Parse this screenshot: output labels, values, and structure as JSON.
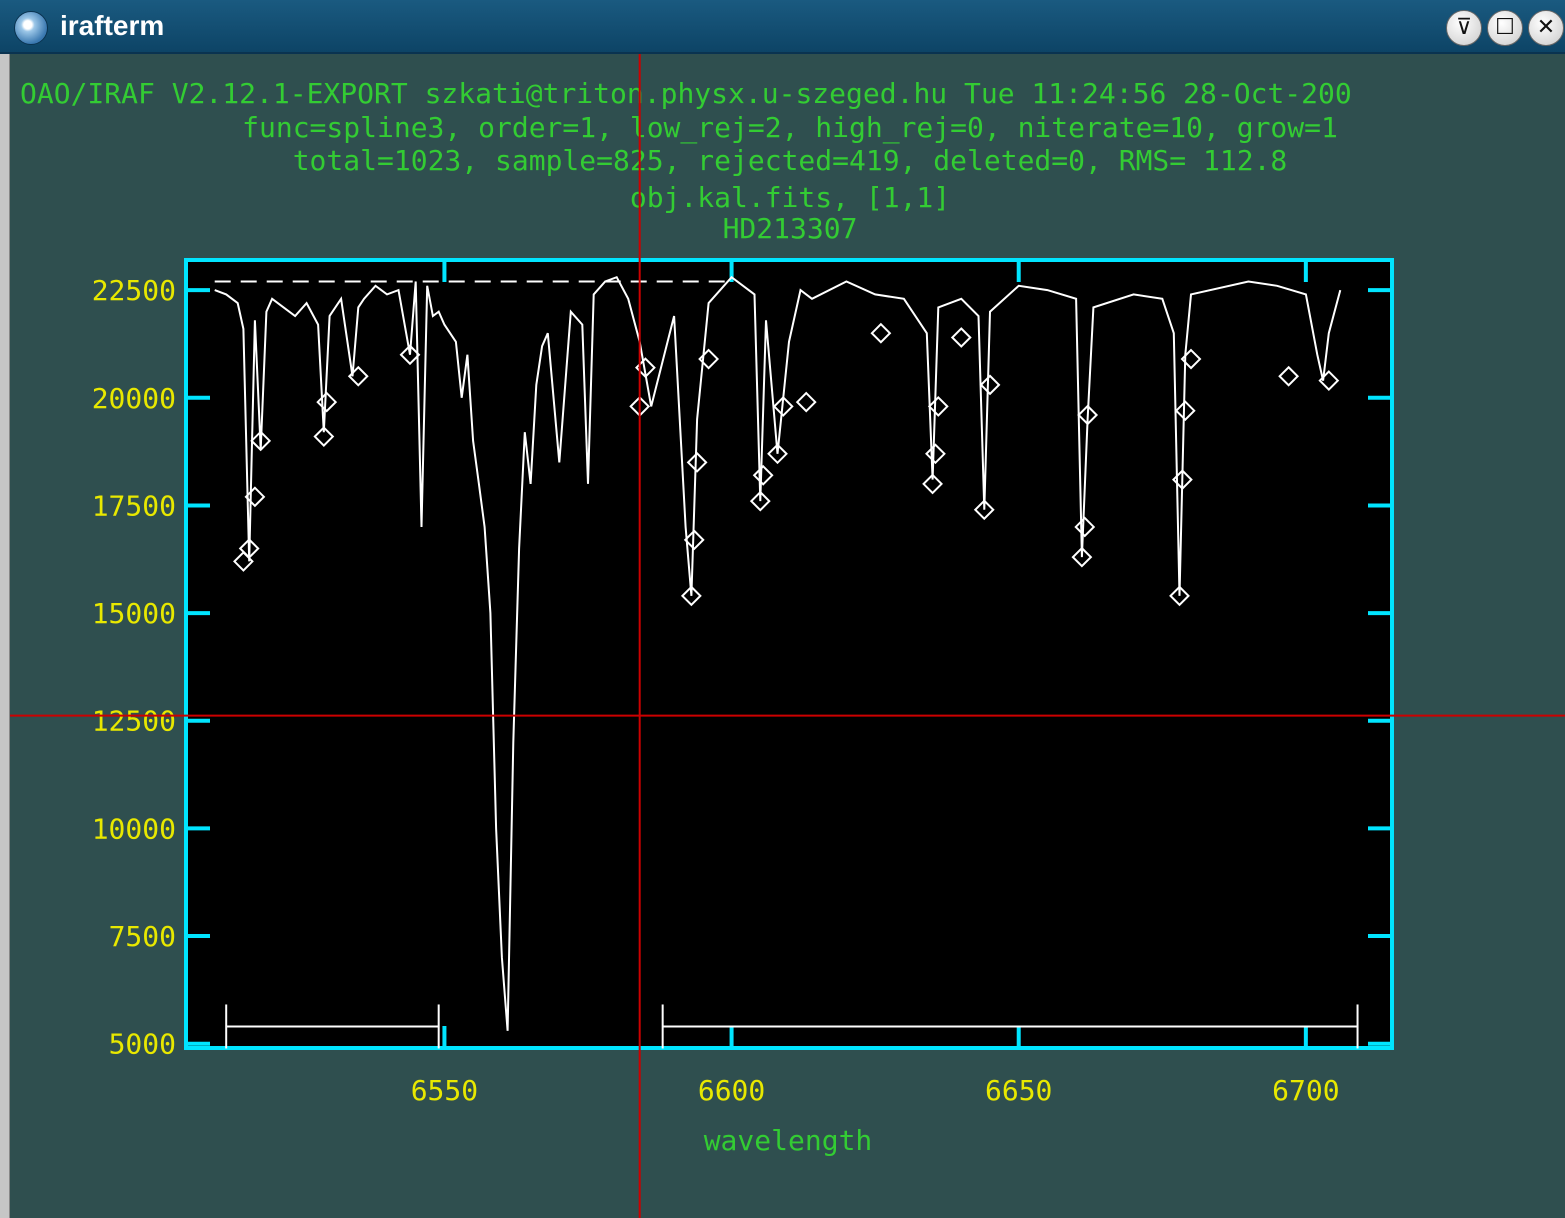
{
  "window": {
    "title": "irafterm",
    "app_icon": "iraf-terminal-icon",
    "buttons": [
      "minimize",
      "maximize",
      "close"
    ],
    "button_glyphs": [
      "⊽",
      "☐",
      "✕"
    ]
  },
  "header": {
    "line1": "OAO/IRAF V2.12.1-EXPORT szkati@triton.physx.u-szeged.hu Tue 11:24:56 28-Oct-200",
    "line2": "func=spline3, order=1, low_rej=2, high_rej=0, niterate=10, grow=1",
    "line3": "total=1023, sample=825, rejected=419, deleted=0, RMS=  112.8",
    "line4": "obj.kal.fits, [1,1]",
    "line5": "HD213307"
  },
  "colors": {
    "background": "#2f4f4f",
    "axes": "#00e5ff",
    "tick_labels": "#e8e800",
    "header_text": "#33cc33",
    "data": "#ffffff",
    "cursor": "#cc0000",
    "plot_bg": "#000000"
  },
  "chart_data": {
    "type": "line",
    "xlabel": "wavelength",
    "ylabel": "",
    "xlim": [
      6505,
      6715
    ],
    "ylim": [
      4900,
      23200
    ],
    "xticks": [
      6550,
      6600,
      6650,
      6700
    ],
    "xtick_labels": [
      "6550",
      "6600",
      "6650",
      "6700"
    ],
    "yticks": [
      5000,
      7500,
      10000,
      12500,
      15000,
      17500,
      20000,
      22500
    ],
    "ytick_labels": [
      "5000",
      "7500",
      "10000",
      "12500",
      "15000",
      "17500",
      "20000",
      "22500"
    ],
    "continuum_fit": {
      "style": "dashed",
      "x": [
        6510,
        6600
      ],
      "y": [
        22700,
        22700
      ]
    },
    "spectrum": {
      "x": [
        6510,
        6512,
        6514,
        6515,
        6516,
        6517,
        6518,
        6519,
        6520,
        6522,
        6524,
        6526,
        6528,
        6529,
        6530,
        6532,
        6534,
        6535,
        6536,
        6538,
        6540,
        6542,
        6544,
        6545,
        6546,
        6547,
        6548,
        6549,
        6550,
        6552,
        6553,
        6554,
        6555,
        6556,
        6557,
        6558,
        6559,
        6560,
        6561,
        6562,
        6563,
        6564,
        6565,
        6566,
        6567,
        6568,
        6570,
        6572,
        6574,
        6575,
        6576,
        6578,
        6580,
        6582,
        6584,
        6586,
        6590,
        6592,
        6593,
        6594,
        6596,
        6600,
        6604,
        6605,
        6606,
        6608,
        6610,
        6612,
        6614,
        6620,
        6625,
        6630,
        6634,
        6635,
        6636,
        6640,
        6643,
        6644,
        6645,
        6650,
        6655,
        6660,
        6661,
        6662,
        6663,
        6670,
        6675,
        6677,
        6678,
        6679,
        6680,
        6690,
        6695,
        6700,
        6702,
        6703,
        6704,
        6706
      ],
      "y": [
        22500,
        22400,
        22200,
        21600,
        16200,
        21800,
        18800,
        22000,
        22300,
        22100,
        21900,
        22200,
        21700,
        19200,
        21900,
        22300,
        20500,
        22100,
        22300,
        22600,
        22400,
        22500,
        21000,
        22700,
        17000,
        22600,
        21900,
        22000,
        21700,
        21300,
        20000,
        21000,
        19000,
        18000,
        17000,
        15000,
        10000,
        7000,
        5300,
        12000,
        16500,
        19200,
        18000,
        20300,
        21200,
        21500,
        18500,
        22000,
        21700,
        18000,
        22400,
        22700,
        22800,
        22300,
        21300,
        19800,
        21900,
        17000,
        15400,
        19500,
        22200,
        22800,
        22400,
        17600,
        21800,
        18700,
        21300,
        22500,
        22300,
        22700,
        22400,
        22300,
        21500,
        18100,
        22100,
        22300,
        21900,
        17400,
        22000,
        22600,
        22500,
        22300,
        16300,
        19500,
        22100,
        22400,
        22300,
        21500,
        15400,
        21000,
        22400,
        22700,
        22600,
        22400,
        21000,
        20400,
        21500,
        22500
      ]
    },
    "rejected_points": {
      "x": [
        6515,
        6516,
        6517,
        6518,
        6529,
        6529.5,
        6535,
        6544,
        6584,
        6585,
        6593,
        6593.5,
        6594,
        6596,
        6605,
        6605.5,
        6608,
        6609,
        6613,
        6626,
        6635,
        6635.5,
        6636,
        6640,
        6644,
        6645,
        6661,
        6661.5,
        6662,
        6678,
        6678.5,
        6679,
        6680,
        6697,
        6704
      ],
      "y": [
        16200,
        16500,
        17700,
        19000,
        19100,
        19900,
        20500,
        21000,
        19800,
        20700,
        15400,
        16700,
        18500,
        20900,
        17600,
        18200,
        18700,
        19800,
        19900,
        21500,
        18000,
        18700,
        19800,
        21400,
        17400,
        20300,
        16300,
        17000,
        19600,
        15400,
        18100,
        19700,
        20900,
        20500,
        20400
      ]
    },
    "sample_regions": [
      {
        "x": [
          6512,
          6549
        ],
        "y": 5400
      },
      {
        "x": [
          6588,
          6709
        ],
        "y": 5400
      }
    ],
    "cursor": {
      "x": 6584,
      "y": 12620
    }
  }
}
